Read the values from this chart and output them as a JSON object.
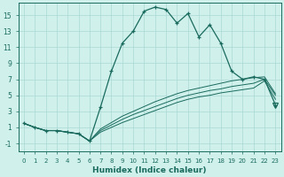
{
  "xlabel": "Humidex (Indice chaleur)",
  "bg_color": "#cff0eb",
  "grid_color": "#aad8d3",
  "line_color": "#1a6b5e",
  "xlim": [
    -0.5,
    23.5
  ],
  "ylim": [
    -2.0,
    16.5
  ],
  "xticks": [
    0,
    1,
    2,
    3,
    4,
    5,
    6,
    7,
    8,
    9,
    10,
    11,
    12,
    13,
    14,
    15,
    16,
    17,
    18,
    19,
    20,
    21,
    22,
    23
  ],
  "yticks": [
    -1,
    1,
    3,
    5,
    7,
    9,
    11,
    13,
    15
  ],
  "curve_x": [
    0,
    1,
    2,
    3,
    4,
    5,
    6,
    7,
    8,
    9,
    10,
    11,
    12,
    13,
    14,
    15,
    16,
    17,
    18,
    19,
    20,
    21,
    22,
    23
  ],
  "curve_y": [
    1.5,
    1.0,
    0.6,
    0.6,
    0.4,
    0.2,
    -0.7,
    3.5,
    8.0,
    11.5,
    13.0,
    15.5,
    16.0,
    15.7,
    14.0,
    15.2,
    12.3,
    13.8,
    11.5,
    8.0,
    7.0,
    7.3,
    7.0,
    3.8
  ],
  "flat1_x": [
    0,
    1,
    2,
    3,
    4,
    5,
    6,
    7,
    8,
    9,
    10,
    11,
    12,
    13,
    14,
    15,
    16,
    17,
    18,
    19,
    20,
    21,
    22,
    23
  ],
  "flat1_y": [
    1.5,
    1.0,
    0.6,
    0.6,
    0.4,
    0.2,
    -0.7,
    0.4,
    1.0,
    1.6,
    2.1,
    2.6,
    3.1,
    3.6,
    4.1,
    4.5,
    4.8,
    5.0,
    5.3,
    5.5,
    5.7,
    5.9,
    6.8,
    4.5
  ],
  "flat2_x": [
    0,
    1,
    2,
    3,
    4,
    5,
    6,
    7,
    8,
    9,
    10,
    11,
    12,
    13,
    14,
    15,
    16,
    17,
    18,
    19,
    20,
    21,
    22,
    23
  ],
  "flat2_y": [
    1.5,
    1.0,
    0.6,
    0.6,
    0.4,
    0.2,
    -0.7,
    0.6,
    1.3,
    2.0,
    2.6,
    3.1,
    3.6,
    4.1,
    4.6,
    5.0,
    5.3,
    5.6,
    5.8,
    6.1,
    6.3,
    6.5,
    7.0,
    5.0
  ],
  "flat3_x": [
    0,
    1,
    2,
    3,
    4,
    5,
    6,
    7,
    8,
    9,
    10,
    11,
    12,
    13,
    14,
    15,
    16,
    17,
    18,
    19,
    20,
    21,
    22,
    23
  ],
  "flat3_y": [
    1.5,
    1.0,
    0.6,
    0.6,
    0.4,
    0.2,
    -0.7,
    0.8,
    1.6,
    2.4,
    3.0,
    3.6,
    4.2,
    4.7,
    5.2,
    5.6,
    5.9,
    6.2,
    6.5,
    6.8,
    7.0,
    7.2,
    7.3,
    5.2
  ]
}
